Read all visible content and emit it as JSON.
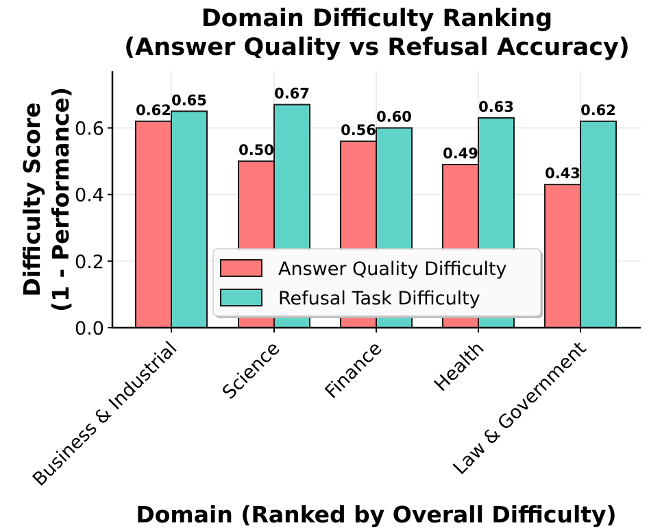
{
  "chart_data": {
    "type": "bar",
    "title_lines": [
      "Domain Difficulty Ranking",
      "(Answer Quality vs Refusal Accuracy)"
    ],
    "xlabel": "Domain (Ranked by Overall Difficulty)",
    "ylabel_lines": [
      "Difficulty Score",
      "(1 - Performance)"
    ],
    "categories": [
      "Business & Industrial",
      "Science",
      "Finance",
      "Health",
      "Law & Government"
    ],
    "series": [
      {
        "name": "Answer Quality Difficulty",
        "color": "#ff7a7a",
        "values": [
          0.62,
          0.5,
          0.56,
          0.49,
          0.43
        ]
      },
      {
        "name": "Refusal Task Difficulty",
        "color": "#5fd3c8",
        "values": [
          0.65,
          0.67,
          0.6,
          0.63,
          0.62
        ]
      }
    ],
    "value_labels": [
      [
        "0.62",
        "0.50",
        "0.56",
        "0.49",
        "0.43"
      ],
      [
        "0.65",
        "0.67",
        "0.60",
        "0.63",
        "0.62"
      ]
    ],
    "yticks": [
      "0.0",
      "0.2",
      "0.4",
      "0.6"
    ],
    "ylim": [
      0,
      0.77
    ],
    "grid": true,
    "legend_position": "center"
  }
}
